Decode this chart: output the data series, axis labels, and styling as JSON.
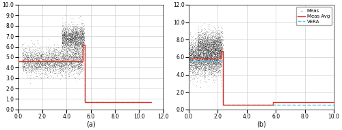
{
  "subplot_a": {
    "xlabel": "(a)",
    "xlim": [
      0,
      12
    ],
    "ylim": [
      0,
      10
    ],
    "xticks": [
      0.0,
      2.0,
      4.0,
      6.0,
      8.0,
      10.0,
      12.0
    ],
    "yticks": [
      0.0,
      1.0,
      2.0,
      3.0,
      4.0,
      5.0,
      6.0,
      7.0,
      8.0,
      9.0,
      10.0
    ],
    "meas_avg_x": [
      0.0,
      5.35,
      5.35,
      5.5,
      5.5,
      11.0
    ],
    "meas_avg_y": [
      4.6,
      4.6,
      6.15,
      6.15,
      0.7,
      0.7
    ],
    "vera_x": [
      0.0,
      5.35,
      5.35,
      5.5,
      5.5,
      11.0
    ],
    "vera_y": [
      4.6,
      4.6,
      6.15,
      6.15,
      0.7,
      0.7
    ],
    "scatter": [
      {
        "x_range": [
          0.3,
          5.35
        ],
        "y_mean": 4.6,
        "y_std": 0.6,
        "n": 3000
      },
      {
        "x_range": [
          3.6,
          5.45
        ],
        "y_mean": 6.8,
        "y_std": 0.65,
        "n": 2000
      }
    ]
  },
  "subplot_b": {
    "xlabel": "(b)",
    "xlim": [
      0,
      10
    ],
    "ylim": [
      0,
      12
    ],
    "xticks": [
      0.0,
      2.0,
      4.0,
      6.0,
      8.0,
      10.0
    ],
    "yticks": [
      0.0,
      2.0,
      4.0,
      6.0,
      8.0,
      10.0,
      12.0
    ],
    "meas_avg_x": [
      0.0,
      2.2,
      2.2,
      2.35,
      2.35,
      5.8,
      5.8,
      10.0
    ],
    "meas_avg_y": [
      5.8,
      5.8,
      6.7,
      6.7,
      0.55,
      0.55,
      0.85,
      0.85
    ],
    "vera_x": [
      0.0,
      2.2,
      2.2,
      2.35,
      2.35,
      10.0
    ],
    "vera_y": [
      5.5,
      5.5,
      6.6,
      6.6,
      0.5,
      0.5
    ],
    "scatter": [
      {
        "x_range": [
          0.0,
          2.25
        ],
        "y_mean": 6.0,
        "y_std": 1.0,
        "n": 3500
      },
      {
        "x_range": [
          0.6,
          2.35
        ],
        "y_mean": 7.5,
        "y_std": 0.8,
        "n": 1500
      }
    ]
  },
  "colors": {
    "meas_avg": "#e03020",
    "vera": "#50c8f0",
    "scatter": "#111111",
    "background": "#ffffff",
    "grid": "#d0d0d0"
  },
  "legend": {
    "labels": [
      "Meas",
      "Meas Avg",
      "VERA"
    ]
  }
}
